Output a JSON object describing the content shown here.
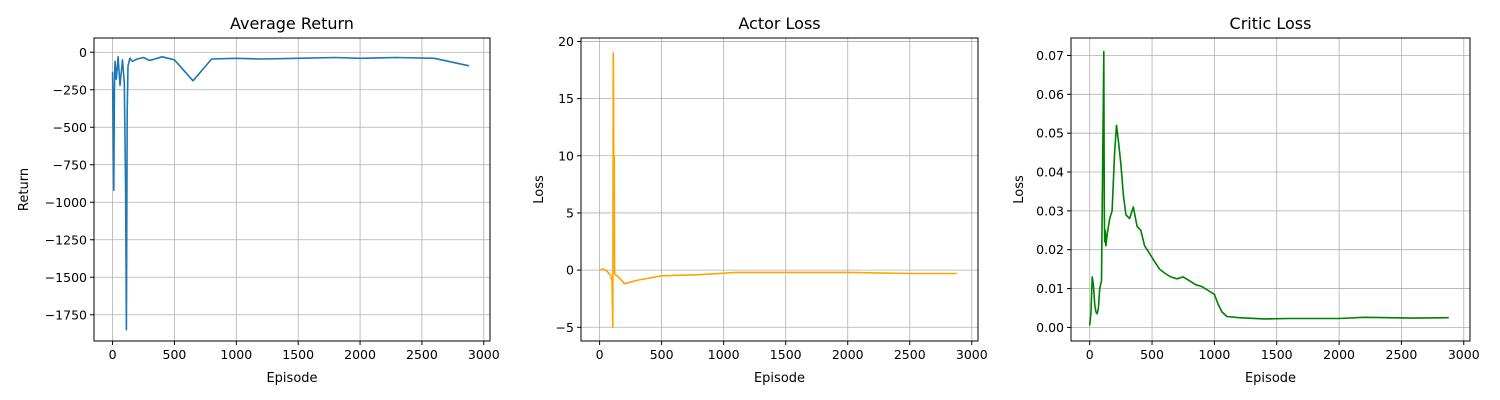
{
  "chart_data": [
    {
      "type": "line",
      "title": "Average Return",
      "xlabel": "Episode",
      "ylabel": "Return",
      "xlim": [
        -150,
        3050
      ],
      "ylim": [
        -1925,
        95
      ],
      "xticks": [
        0,
        500,
        1000,
        1500,
        2000,
        2500,
        3000
      ],
      "yticks": [
        0,
        -250,
        -500,
        -750,
        -1000,
        -1250,
        -1500,
        -1750
      ],
      "grid": true,
      "color": "#1f77b4",
      "x": [
        0,
        5,
        10,
        15,
        20,
        30,
        45,
        60,
        80,
        95,
        105,
        112,
        118,
        125,
        140,
        160,
        200,
        250,
        300,
        400,
        500,
        650,
        800,
        1000,
        1200,
        1500,
        1800,
        2000,
        2300,
        2600,
        2880
      ],
      "y": [
        -130,
        -600,
        -920,
        -250,
        -60,
        -180,
        -30,
        -220,
        -50,
        -200,
        -900,
        -1850,
        -400,
        -90,
        -40,
        -60,
        -45,
        -35,
        -55,
        -30,
        -50,
        -190,
        -45,
        -40,
        -45,
        -40,
        -35,
        -40,
        -35,
        -40,
        -90
      ]
    },
    {
      "type": "line",
      "title": "Actor Loss",
      "xlabel": "Episode",
      "ylabel": "Loss",
      "xlim": [
        -150,
        3050
      ],
      "ylim": [
        -6.2,
        20.3
      ],
      "xticks": [
        0,
        500,
        1000,
        1500,
        2000,
        2500,
        3000
      ],
      "yticks": [
        -5,
        0,
        5,
        10,
        15,
        20
      ],
      "grid": true,
      "color": "#ffa500",
      "x": [
        0,
        30,
        60,
        90,
        100,
        106,
        110,
        113,
        115,
        118,
        121,
        125,
        140,
        170,
        200,
        300,
        500,
        800,
        1100,
        1500,
        2000,
        2500,
        2880
      ],
      "y": [
        0.0,
        0.1,
        -0.1,
        -0.5,
        -1.0,
        -5.0,
        19.0,
        15.0,
        3.0,
        10.0,
        -0.2,
        -0.4,
        -0.5,
        -0.8,
        -1.2,
        -0.9,
        -0.5,
        -0.4,
        -0.2,
        -0.2,
        -0.2,
        -0.3,
        -0.3
      ]
    },
    {
      "type": "line",
      "title": "Critic Loss",
      "xlabel": "Episode",
      "ylabel": "Loss",
      "xlim": [
        -150,
        3050
      ],
      "ylim": [
        -0.0035,
        0.0745
      ],
      "xticks": [
        0,
        500,
        1000,
        1500,
        2000,
        2500,
        3000
      ],
      "yticks": [
        0.0,
        0.01,
        0.02,
        0.03,
        0.04,
        0.05,
        0.06,
        0.07
      ],
      "ytick_labels": [
        "0.00",
        "0.01",
        "0.02",
        "0.03",
        "0.04",
        "0.05",
        "0.06",
        "0.07"
      ],
      "grid": true,
      "color": "#008000",
      "x": [
        0,
        10,
        20,
        30,
        40,
        50,
        60,
        70,
        80,
        95,
        105,
        110,
        113,
        117,
        120,
        125,
        130,
        140,
        160,
        180,
        200,
        215,
        230,
        250,
        270,
        290,
        320,
        350,
        380,
        410,
        440,
        480,
        520,
        560,
        600,
        650,
        700,
        750,
        800,
        850,
        900,
        950,
        1000,
        1030,
        1060,
        1100,
        1200,
        1400,
        1600,
        1800,
        2000,
        2200,
        2400,
        2600,
        2880
      ],
      "y": [
        0.0005,
        0.004,
        0.013,
        0.011,
        0.006,
        0.004,
        0.0035,
        0.005,
        0.01,
        0.012,
        0.046,
        0.06,
        0.071,
        0.03,
        0.022,
        0.025,
        0.021,
        0.024,
        0.028,
        0.03,
        0.045,
        0.052,
        0.048,
        0.042,
        0.034,
        0.029,
        0.028,
        0.031,
        0.026,
        0.025,
        0.021,
        0.019,
        0.017,
        0.015,
        0.014,
        0.013,
        0.0125,
        0.013,
        0.012,
        0.011,
        0.0105,
        0.0095,
        0.0085,
        0.006,
        0.004,
        0.0028,
        0.0025,
        0.0022,
        0.0023,
        0.0023,
        0.0023,
        0.0026,
        0.0025,
        0.0024,
        0.0025
      ]
    }
  ]
}
